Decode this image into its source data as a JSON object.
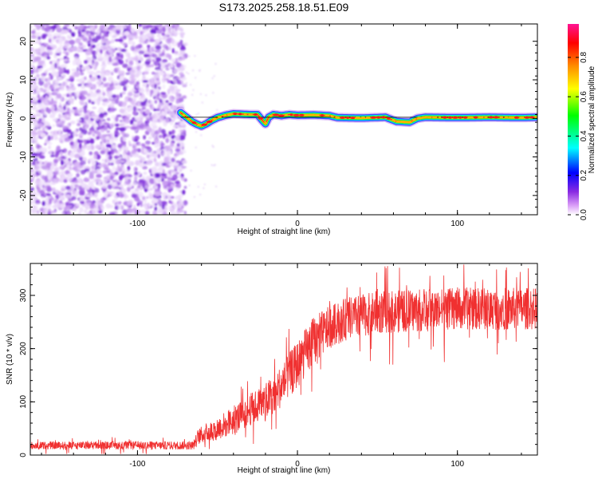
{
  "title": "S173.2025.258.18.51.E09",
  "chart_data": [
    {
      "type": "heatmap",
      "name": "spectrogram",
      "xlabel": "Height of straight line (km)",
      "ylabel": "Frequency (Hz)",
      "xlim": [
        -167,
        150
      ],
      "ylim": [
        -25,
        24.5
      ],
      "xticks": [
        -100,
        0,
        100
      ],
      "yticks": [
        -20,
        -10,
        0,
        10,
        20
      ],
      "noise_region_x": [
        -167,
        -70
      ],
      "ridge": {
        "x": [
          -73,
          -70,
          -66,
          -63,
          -60,
          -57,
          -54,
          -50,
          -45,
          -40,
          -35,
          -30,
          -25,
          -22,
          -20,
          -18,
          -15,
          -10,
          -5,
          0,
          10,
          20,
          25,
          40,
          55,
          62,
          70,
          75,
          80,
          100,
          120,
          140,
          150
        ],
        "freq": [
          1.5,
          0.5,
          -0.8,
          -1.5,
          -2.0,
          -1.4,
          -0.6,
          0.2,
          0.8,
          1.2,
          1.1,
          1.0,
          1.0,
          -0.5,
          -1.4,
          0.3,
          1.0,
          0.7,
          1.0,
          0.8,
          0.9,
          0.7,
          0.2,
          0.1,
          0.3,
          -0.8,
          -1.0,
          0.0,
          0.3,
          0.2,
          0.3,
          0.2,
          0.3
        ]
      },
      "colorbar": {
        "label": "Normalized spectral amplitude",
        "range": [
          0.0,
          0.97
        ],
        "ticks": [
          "0.0",
          "0.2",
          "0.4",
          "0.6",
          "0.8"
        ],
        "colors": [
          "#ffffff",
          "#d99cf7",
          "#8a2be2",
          "#0000ff",
          "#00ffff",
          "#00ff00",
          "#ffff00",
          "#ff8c00",
          "#ff0000",
          "#ff1493"
        ]
      }
    },
    {
      "type": "line",
      "name": "snr",
      "xlabel": "Height of straight line (km)",
      "ylabel": "SNR (10 * v/v)",
      "xlim": [
        -167,
        150
      ],
      "ylim": [
        0,
        360
      ],
      "xticks": [
        -100,
        0,
        100
      ],
      "yticks": [
        0,
        100,
        200,
        300
      ],
      "color": "#f03030",
      "trend": {
        "x": [
          -167,
          -65,
          -62,
          -50,
          -40,
          -30,
          -20,
          -10,
          0,
          10,
          20,
          30,
          50,
          80,
          100,
          150
        ],
        "mean": [
          18,
          18,
          35,
          50,
          65,
          85,
          100,
          130,
          170,
          215,
          240,
          255,
          268,
          272,
          275,
          275
        ],
        "amp": [
          7,
          8,
          15,
          22,
          28,
          30,
          35,
          40,
          45,
          45,
          40,
          40,
          40,
          40,
          40,
          40
        ]
      }
    }
  ]
}
